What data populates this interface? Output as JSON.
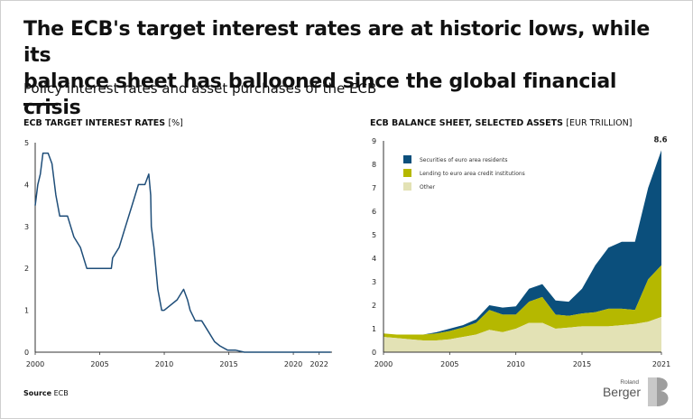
{
  "header": {
    "title_line1": "The ECB's target interest rates are at historic lows, while its",
    "title_line2": "balance sheet has ballooned since the global financial crisis",
    "subtitle": "Policy interest rates and asset purchases of the ECB"
  },
  "footer": {
    "source_label": "Source",
    "source_value": "ECB",
    "logo_small": "Roland",
    "logo_big": "Berger"
  },
  "colors": {
    "line": "#1f4e79",
    "securities": "#0b4f7c",
    "lending": "#b5b800",
    "other": "#e3e2b5",
    "axis": "#333333"
  },
  "chart_data": [
    {
      "type": "line",
      "title": "ECB TARGET INTEREST RATES",
      "unit": "[%]",
      "xlim": [
        2000,
        2023
      ],
      "ylim": [
        0,
        5
      ],
      "xticks": [
        2000,
        2005,
        2010,
        2015,
        2020,
        2022
      ],
      "yticks": [
        0,
        1,
        2,
        3,
        4,
        5
      ],
      "series": [
        {
          "x": [
            2000.0,
            2000.2,
            2000.4,
            2000.6,
            2000.8,
            2001.0,
            2001.3,
            2001.6,
            2001.9,
            2002.5,
            2003.0,
            2003.5,
            2004.0,
            2005.0,
            2005.9,
            2006.0,
            2006.5,
            2007.0,
            2007.5,
            2008.0,
            2008.5,
            2008.8,
            2008.95,
            2009.0,
            2009.2,
            2009.5,
            2009.8,
            2010.0,
            2011.0,
            2011.5,
            2011.8,
            2012.0,
            2012.4,
            2012.9,
            2013.4,
            2013.9,
            2014.3,
            2014.9,
            2015.5,
            2016.2,
            2017.0,
            2018.0,
            2019.0,
            2020.0,
            2021.0,
            2022.0,
            2022.9
          ],
          "y": [
            3.5,
            4.0,
            4.25,
            4.75,
            4.75,
            4.75,
            4.5,
            3.75,
            3.25,
            3.25,
            2.75,
            2.5,
            2.0,
            2.0,
            2.0,
            2.25,
            2.5,
            3.0,
            3.5,
            4.0,
            4.0,
            4.25,
            3.75,
            3.0,
            2.5,
            1.5,
            1.0,
            1.0,
            1.25,
            1.5,
            1.25,
            1.0,
            0.75,
            0.75,
            0.5,
            0.25,
            0.15,
            0.05,
            0.05,
            0.0,
            0.0,
            0.0,
            0.0,
            0.0,
            0.0,
            0.0,
            0.0
          ]
        }
      ]
    },
    {
      "type": "area",
      "stacked": true,
      "title": "ECB BALANCE SHEET, SELECTED ASSETS",
      "unit": "[EUR TRILLION]",
      "xlim": [
        2000,
        2021
      ],
      "ylim": [
        0,
        9
      ],
      "xticks": [
        2000,
        2005,
        2010,
        2015,
        2021
      ],
      "yticks": [
        0,
        1,
        2,
        3,
        4,
        5,
        6,
        7,
        8,
        9
      ],
      "legend_position": "top-left",
      "end_label": "8.6",
      "x": [
        2000,
        2001,
        2002,
        2003,
        2004,
        2005,
        2006,
        2007,
        2008,
        2009,
        2010,
        2011,
        2012,
        2013,
        2014,
        2015,
        2016,
        2017,
        2018,
        2019,
        2020,
        2021
      ],
      "series": [
        {
          "name": "Other",
          "values": [
            0.65,
            0.6,
            0.55,
            0.5,
            0.5,
            0.55,
            0.65,
            0.75,
            0.95,
            0.85,
            1.0,
            1.25,
            1.25,
            1.0,
            1.05,
            1.1,
            1.1,
            1.1,
            1.15,
            1.2,
            1.3,
            1.5
          ]
        },
        {
          "name": "Lending to euro area credit institutions",
          "values": [
            0.15,
            0.15,
            0.2,
            0.25,
            0.3,
            0.35,
            0.4,
            0.5,
            0.85,
            0.75,
            0.6,
            0.9,
            1.1,
            0.6,
            0.5,
            0.55,
            0.6,
            0.75,
            0.7,
            0.6,
            1.8,
            2.2
          ]
        },
        {
          "name": "Securities of euro area residents",
          "values": [
            0.0,
            0.0,
            0.0,
            0.0,
            0.05,
            0.1,
            0.1,
            0.15,
            0.2,
            0.3,
            0.35,
            0.55,
            0.55,
            0.6,
            0.6,
            1.05,
            2.0,
            2.6,
            2.85,
            2.9,
            3.9,
            4.9
          ]
        }
      ]
    }
  ]
}
